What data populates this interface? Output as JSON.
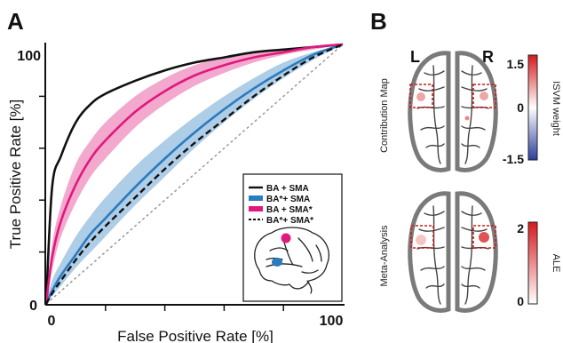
{
  "panel_a_letter": "A",
  "panel_b_letter": "B",
  "chart_data": {
    "type": "line",
    "title": "",
    "xlabel": "False Positive  Rate [%]",
    "ylabel": "True Positive  Rate [%]",
    "xlim": [
      0,
      100
    ],
    "ylim": [
      0,
      100
    ],
    "x_tick_labels": [
      "0",
      "100"
    ],
    "y_tick_labels": [
      "0",
      "100"
    ],
    "minor_ticks": [
      20,
      40,
      60,
      80
    ],
    "legend_position": "bottom-right",
    "x": [
      0,
      2,
      5,
      10,
      15,
      20,
      30,
      40,
      50,
      60,
      70,
      80,
      90,
      100
    ],
    "series": [
      {
        "name": "BA  + SMA",
        "color": "#111111",
        "dash": "solid",
        "values": [
          0,
          45,
          57,
          70,
          77,
          81,
          86,
          90,
          93,
          95,
          97,
          98,
          99,
          100
        ]
      },
      {
        "name": "BA*+ SMA",
        "color": "#2b7bbf",
        "dash": "solid",
        "values": [
          0,
          5,
          11,
          19,
          27,
          33,
          45,
          56,
          66,
          75,
          83,
          90,
          96,
          100
        ],
        "band_lower": [
          0,
          3,
          7,
          14,
          20,
          26,
          38,
          49,
          60,
          70,
          79,
          87,
          94,
          100
        ],
        "band_upper": [
          0,
          9,
          16,
          26,
          34,
          41,
          53,
          63,
          72,
          80,
          87,
          93,
          97,
          100
        ]
      },
      {
        "name": "BA  + SMA*",
        "color": "#e0197d",
        "dash": "solid",
        "values": [
          0,
          18,
          32,
          46,
          56,
          63,
          74,
          82,
          88,
          92,
          95,
          97,
          99,
          100
        ],
        "band_lower": [
          0,
          13,
          26,
          39,
          49,
          56,
          68,
          77,
          84,
          89,
          93,
          96,
          98,
          100
        ],
        "band_upper": [
          0,
          23,
          38,
          54,
          63,
          70,
          80,
          87,
          92,
          95,
          97,
          98,
          99,
          100
        ]
      },
      {
        "name": "BA*+ SMA*",
        "color": "#111111",
        "dash": "dashed",
        "values": [
          0,
          4,
          9,
          17,
          24,
          30,
          41,
          52,
          62,
          71,
          80,
          88,
          95,
          100
        ]
      }
    ],
    "chance_line": {
      "color": "#999999",
      "dash": "dotted"
    }
  },
  "panel_b": {
    "hemisphere_left": "L",
    "hemisphere_right": "R",
    "maps": [
      {
        "label": "Contribution Map",
        "colorbar_label": "ISVM weight",
        "colorbar_ticks": [
          "1.5",
          "0",
          "-1.5"
        ],
        "colorbar_colors": [
          "#d7191c",
          "#ffffff",
          "#2c3e9e"
        ]
      },
      {
        "label": "Meta-Analysis",
        "colorbar_label": "ALE",
        "colorbar_ticks": [
          "2",
          "0"
        ],
        "colorbar_colors": [
          "#d7191c",
          "#ffffff"
        ]
      }
    ],
    "roi_colors": {
      "ba": "#e0197d",
      "sma": "#2b7bbf"
    }
  }
}
